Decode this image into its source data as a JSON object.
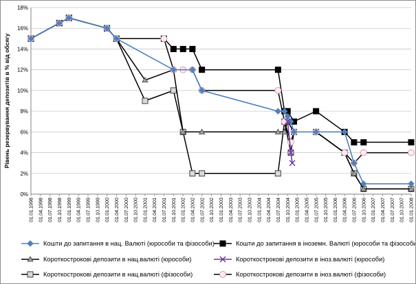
{
  "chart_data": {
    "type": "line",
    "ylabel": "Рівень резервування депозитів в % від обсягу",
    "ylim": [
      0,
      18
    ],
    "yticks": [
      "0%",
      "2%",
      "4%",
      "6%",
      "8%",
      "10%",
      "12%",
      "14%",
      "16%",
      "18%"
    ],
    "grid": "horizontal",
    "legend_position": "bottom",
    "x_labels": [
      "01.01.1998",
      "01.04.1998",
      "01.07.1998",
      "01.10.1998",
      "01.01.1999",
      "01.04.1999",
      "01.07.1999",
      "01.10.1999",
      "01.01.2000",
      "01.04.2000",
      "01.07.2000",
      "01.10.2000",
      "01.01.2001",
      "01.04.2001",
      "01.07.2001",
      "01.10.2001",
      "01.01.2002",
      "01.04.2002",
      "01.07.2002",
      "01.10.2002",
      "01.01.2003",
      "01.04.2003",
      "01.07.2003",
      "01.10.2003",
      "01.01.2004",
      "01.04.2004",
      "01.07.2004",
      "01.10.2004",
      "01.01.2005",
      "01.04.2005",
      "01.07.2005",
      "01.10.2005",
      "01.01.2006",
      "01.04.2006",
      "01.07.2006",
      "01.10.2006",
      "01.01.2007",
      "01.04.2007",
      "01.07.2007",
      "01.10.2007",
      "01.01.2008"
    ],
    "series": [
      {
        "name": "Кошти до запитання в нац. Валюті (юрособи та фізособи)",
        "color": "#4f81bd",
        "marker": "diamond",
        "points": [
          [
            "1998-01-01",
            15
          ],
          [
            "1998-10-01",
            16.5
          ],
          [
            "1999-01-01",
            17
          ],
          [
            "2000-01-01",
            16
          ],
          [
            "2000-04-01",
            15
          ],
          [
            "2001-10-01",
            12
          ],
          [
            "2002-04-01",
            12
          ],
          [
            "2002-07-01",
            10
          ],
          [
            "2004-07-01",
            8
          ],
          [
            "2004-09-01",
            8
          ],
          [
            "2004-10-01",
            7.5
          ],
          [
            "2004-11-01",
            7
          ],
          [
            "2004-12-01",
            6
          ],
          [
            "2005-07-01",
            6
          ],
          [
            "2006-04-01",
            6
          ],
          [
            "2006-07-01",
            3
          ],
          [
            "2006-10-01",
            1
          ],
          [
            "2008-01-01",
            1
          ]
        ]
      },
      {
        "name": "Кошти до запитання в іноземн. Валюті (юрособи та фізособи)",
        "color": "#000000",
        "marker": "square-filled",
        "points": [
          [
            "1998-01-01",
            15
          ],
          [
            "1998-10-01",
            16.5
          ],
          [
            "1999-01-01",
            17
          ],
          [
            "2000-01-01",
            16
          ],
          [
            "2000-04-01",
            15
          ],
          [
            "2001-07-01",
            15
          ],
          [
            "2001-10-01",
            14
          ],
          [
            "2002-01-01",
            14
          ],
          [
            "2002-04-01",
            14
          ],
          [
            "2002-07-01",
            12
          ],
          [
            "2004-07-01",
            12
          ],
          [
            "2004-09-01",
            8
          ],
          [
            "2004-10-01",
            8
          ],
          [
            "2004-12-01",
            7
          ],
          [
            "2005-07-01",
            8
          ],
          [
            "2006-04-01",
            6
          ],
          [
            "2006-07-01",
            5
          ],
          [
            "2006-10-01",
            5
          ],
          [
            "2008-01-01",
            5
          ]
        ]
      },
      {
        "name": "Короткострокові депозити в нац.валюті (юрособи)",
        "color": "#000000",
        "marker": "triangle",
        "points": [
          [
            "1998-01-01",
            15
          ],
          [
            "1998-10-01",
            16.5
          ],
          [
            "1999-01-01",
            17
          ],
          [
            "2000-01-01",
            16
          ],
          [
            "2000-04-01",
            15
          ],
          [
            "2001-01-01",
            11
          ],
          [
            "2001-10-01",
            12
          ],
          [
            "2002-01-01",
            6
          ],
          [
            "2002-07-01",
            6
          ],
          [
            "2004-07-01",
            6
          ],
          [
            "2004-09-01",
            6
          ],
          [
            "2004-10-01",
            7
          ],
          [
            "2004-12-01",
            6
          ],
          [
            "2005-07-01",
            6
          ],
          [
            "2006-04-01",
            4
          ],
          [
            "2006-07-01",
            2
          ],
          [
            "2006-10-01",
            0.5
          ],
          [
            "2008-01-01",
            0.5
          ]
        ]
      },
      {
        "name": "Короткострокові депозити в іноз.валюті (юрособи)",
        "color": "#7030a0",
        "marker": "x",
        "points": [
          [
            "2004-10-01",
            7
          ],
          [
            "2004-11-01",
            4
          ],
          [
            "2004-11-15",
            3
          ]
        ]
      },
      {
        "name": "Короткострокові депозити в нац.валюті (фізособи)",
        "color": "#000000",
        "marker": "square-open",
        "points": [
          [
            "1998-01-01",
            15
          ],
          [
            "1998-10-01",
            16.5
          ],
          [
            "1999-01-01",
            17
          ],
          [
            "2000-01-01",
            16
          ],
          [
            "2000-04-01",
            15
          ],
          [
            "2001-01-01",
            9
          ],
          [
            "2001-10-01",
            10
          ],
          [
            "2002-01-01",
            6
          ],
          [
            "2002-04-01",
            2
          ],
          [
            "2002-07-01",
            2
          ],
          [
            "2004-07-01",
            2
          ],
          [
            "2004-09-01",
            7
          ],
          [
            "2004-11-01",
            4
          ],
          [
            "2004-12-01",
            6
          ],
          [
            "2005-07-01",
            6
          ],
          [
            "2006-04-01",
            4
          ],
          [
            "2006-07-01",
            2
          ],
          [
            "2006-10-01",
            0.5
          ],
          [
            "2008-01-01",
            0.5
          ]
        ]
      },
      {
        "name": "Короткострокові депозити в іноз.валюті (фізособи)",
        "color": "#000000",
        "marker": "circle-pink",
        "points": [
          [
            "1998-01-01",
            15
          ],
          [
            "1998-10-01",
            16.5
          ],
          [
            "1999-01-01",
            17
          ],
          [
            "2000-01-01",
            16
          ],
          [
            "2000-04-01",
            15
          ],
          [
            "2001-07-01",
            15
          ],
          [
            "2001-10-01",
            12
          ],
          [
            "2002-01-01",
            12
          ],
          [
            "2002-04-01",
            12
          ],
          [
            "2002-07-01",
            10
          ],
          [
            "2004-07-01",
            10
          ],
          [
            "2004-09-01",
            7
          ],
          [
            "2004-11-01",
            5
          ],
          [
            "2004-12-01",
            6
          ],
          [
            "2005-07-01",
            6
          ],
          [
            "2006-04-01",
            4
          ],
          [
            "2006-07-01",
            3
          ],
          [
            "2006-10-01",
            4
          ],
          [
            "2008-01-01",
            4
          ]
        ]
      }
    ]
  }
}
